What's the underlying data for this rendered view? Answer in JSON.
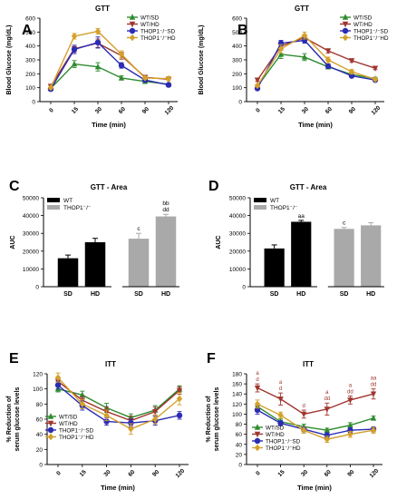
{
  "colors": {
    "wt_sd": "#2e8b2e",
    "wt_hd": "#a0362e",
    "thop_sd": "#2b2bb3",
    "thop_hd": "#d4a02a",
    "wt_bar": "#000000",
    "thop_bar": "#a9a9a9"
  },
  "chart_data": [
    {
      "panel": "A",
      "type": "line",
      "title": "GTT",
      "xlabel": "Time (min)",
      "ylabel": "Blood Glucose (mg/dL)",
      "x": [
        0,
        15,
        30,
        60,
        90,
        120
      ],
      "xticks": [
        "0",
        "15",
        "30",
        "60",
        "90",
        "120"
      ],
      "ylim": [
        0,
        600
      ],
      "yticks": [
        "0",
        "100",
        "200",
        "300",
        "400",
        "500",
        "600"
      ],
      "ystep": 100,
      "legend": "top-right",
      "series": [
        {
          "name": "WT/SD",
          "key": "wt_sd",
          "marker": "triangle",
          "values": [
            95,
            270,
            250,
            170,
            145,
            125
          ],
          "errors": [
            10,
            25,
            30,
            15,
            10,
            10
          ]
        },
        {
          "name": "WT/HD",
          "key": "wt_hd",
          "marker": "triangle-down",
          "values": [
            110,
            380,
            420,
            330,
            175,
            160
          ],
          "errors": [
            10,
            25,
            30,
            25,
            15,
            10
          ]
        },
        {
          "name": "THOP1⁻/⁻SD",
          "key": "thop_sd",
          "marker": "circle",
          "values": [
            90,
            375,
            425,
            260,
            155,
            120
          ],
          "errors": [
            10,
            30,
            40,
            20,
            15,
            10
          ]
        },
        {
          "name": "THOP1⁻/⁻HD",
          "key": "thop_hd",
          "marker": "diamond",
          "values": [
            100,
            470,
            505,
            340,
            170,
            165
          ],
          "errors": [
            10,
            20,
            20,
            25,
            10,
            15
          ]
        }
      ]
    },
    {
      "panel": "B",
      "type": "line",
      "title": "GTT",
      "xlabel": "Time (min)",
      "ylabel": "Blood Glucose (mg/dL)",
      "x": [
        0,
        15,
        30,
        60,
        90,
        120
      ],
      "xticks": [
        "0",
        "15",
        "30",
        "60",
        "90",
        "120"
      ],
      "ylim": [
        0,
        600
      ],
      "yticks": [
        "0",
        "100",
        "200",
        "300",
        "400",
        "500",
        "600"
      ],
      "ystep": 100,
      "legend": "top-right",
      "series": [
        {
          "name": "WT/SD",
          "key": "wt_sd",
          "marker": "triangle",
          "values": [
            110,
            340,
            320,
            250,
            195,
            165
          ],
          "errors": [
            10,
            30,
            25,
            15,
            10,
            10
          ]
        },
        {
          "name": "WT/HD",
          "key": "wt_hd",
          "marker": "triangle-down",
          "values": [
            155,
            400,
            460,
            365,
            295,
            240
          ],
          "errors": [
            10,
            15,
            20,
            15,
            10,
            10
          ]
        },
        {
          "name": "THOP1⁻/⁻SD",
          "key": "thop_sd",
          "marker": "circle",
          "values": [
            95,
            420,
            440,
            255,
            185,
            155
          ],
          "errors": [
            10,
            20,
            20,
            15,
            10,
            10
          ]
        },
        {
          "name": "THOP1⁻/⁻HD",
          "key": "thop_hd",
          "marker": "diamond",
          "values": [
            115,
            380,
            475,
            300,
            215,
            160
          ],
          "errors": [
            10,
            30,
            25,
            20,
            15,
            10
          ]
        }
      ]
    },
    {
      "panel": "C",
      "type": "bar",
      "title": "GTT - Area",
      "ylabel": "AUC",
      "categories": [
        "SD",
        "HD",
        "SD",
        "HD"
      ],
      "groups": [
        "wt_bar",
        "wt_bar",
        "thop_bar",
        "thop_bar"
      ],
      "values": [
        16000,
        25000,
        27000,
        39500
      ],
      "errors": [
        1800,
        2200,
        3000,
        1200
      ],
      "annotations": [
        "",
        "",
        "c",
        "bb\ndd"
      ],
      "ylim": [
        0,
        50000
      ],
      "yticks": [
        "0",
        "10000",
        "20000",
        "30000",
        "40000",
        "50000"
      ],
      "ystep": 10000,
      "legend_entries": [
        "WT",
        "THOP1⁻/⁻"
      ],
      "legend": "top-left"
    },
    {
      "panel": "D",
      "type": "bar",
      "title": "GTT - Area",
      "ylabel": "AUC",
      "categories": [
        "SD",
        "HD",
        "SD",
        "HD"
      ],
      "groups": [
        "wt_bar",
        "wt_bar",
        "thop_bar",
        "thop_bar"
      ],
      "values": [
        21500,
        36500,
        32500,
        34500
      ],
      "errors": [
        2000,
        800,
        800,
        1500
      ],
      "annotations": [
        "",
        "aa",
        "c",
        ""
      ],
      "ylim": [
        0,
        50000
      ],
      "yticks": [
        "0",
        "10000",
        "20000",
        "30000",
        "40000",
        "50000"
      ],
      "ystep": 10000,
      "legend_entries": [
        "WT",
        "THOP1⁻/⁻"
      ],
      "legend": "top-left"
    },
    {
      "panel": "E",
      "type": "line",
      "title": "ITT",
      "xlabel": "Time (min)",
      "ylabel": "% Reduction of\nserum glucose levels",
      "x": [
        0,
        15,
        30,
        60,
        90,
        120
      ],
      "xticks": [
        "0",
        "15",
        "30",
        "60",
        "90",
        "120"
      ],
      "ylim": [
        0,
        120
      ],
      "yticks": [
        "0",
        "20",
        "40",
        "60",
        "80",
        "100",
        "120"
      ],
      "ystep": 20,
      "legend": "bottom-left",
      "series": [
        {
          "name": "WT/SD",
          "key": "wt_sd",
          "marker": "triangle",
          "values": [
            100,
            92,
            75,
            62,
            72,
            100
          ],
          "errors": [
            4,
            5,
            6,
            5,
            6,
            4
          ]
        },
        {
          "name": "WT/HD",
          "key": "wt_hd",
          "marker": "triangle-down",
          "values": [
            110,
            85,
            70,
            58,
            70,
            98
          ],
          "errors": [
            5,
            5,
            6,
            6,
            6,
            5
          ]
        },
        {
          "name": "THOP1⁻/⁻SD",
          "key": "thop_sd",
          "marker": "circle",
          "values": [
            105,
            78,
            57,
            55,
            58,
            65
          ],
          "errors": [
            5,
            6,
            5,
            5,
            6,
            5
          ]
        },
        {
          "name": "THOP1⁻/⁻HD",
          "key": "thop_hd",
          "marker": "diamond",
          "values": [
            115,
            80,
            65,
            47,
            60,
            87
          ],
          "errors": [
            6,
            6,
            7,
            7,
            6,
            8
          ]
        }
      ]
    },
    {
      "panel": "F",
      "type": "line",
      "title": "ITT",
      "xlabel": "Time (min)",
      "ylabel": "% Reduction of\nserum glucose levels",
      "x": [
        0,
        15,
        30,
        60,
        90,
        120
      ],
      "xticks": [
        "0",
        "15",
        "30",
        "60",
        "90",
        "120"
      ],
      "ylim": [
        0,
        180
      ],
      "yticks": [
        "0",
        "20",
        "40",
        "60",
        "80",
        "100",
        "120",
        "140",
        "160",
        "180"
      ],
      "ystep": 20,
      "legend": "bottom-left",
      "series": [
        {
          "name": "WT/SD",
          "key": "wt_sd",
          "marker": "triangle",
          "values": [
            115,
            85,
            75,
            68,
            78,
            92
          ],
          "errors": [
            6,
            5,
            5,
            4,
            5,
            4
          ]
        },
        {
          "name": "WT/HD",
          "key": "wt_hd",
          "marker": "triangle-down",
          "values": [
            152,
            130,
            100,
            110,
            128,
            140
          ],
          "errors": [
            8,
            12,
            8,
            12,
            8,
            10
          ]
        },
        {
          "name": "THOP1⁻/⁻SD",
          "key": "thop_sd",
          "marker": "circle",
          "values": [
            108,
            82,
            70,
            58,
            68,
            70
          ],
          "errors": [
            8,
            5,
            5,
            5,
            5,
            5
          ]
        },
        {
          "name": "THOP1⁻/⁻HD",
          "key": "thop_hd",
          "marker": "diamond",
          "values": [
            120,
            98,
            68,
            50,
            60,
            68
          ],
          "errors": [
            8,
            6,
            6,
            6,
            6,
            6
          ]
        }
      ],
      "point_annotations": [
        {
          "x": 0,
          "labels": [
            "a",
            "d"
          ]
        },
        {
          "x": 15,
          "labels": [
            "a",
            "d"
          ]
        },
        {
          "x": 30,
          "labels": [
            "d"
          ]
        },
        {
          "x": 60,
          "labels": [
            "a",
            "dd"
          ]
        },
        {
          "x": 90,
          "labels": [
            "a",
            "dd"
          ]
        },
        {
          "x": 120,
          "labels": [
            "aa",
            "dd"
          ]
        }
      ]
    }
  ]
}
